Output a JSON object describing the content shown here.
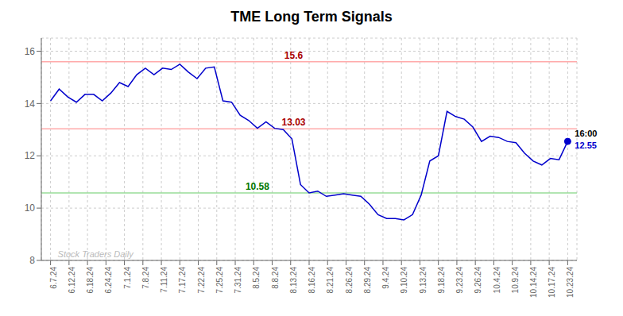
{
  "chart_data": {
    "type": "line",
    "title": "TME Long Term Signals",
    "x": [
      0,
      0.4667,
      0.9333,
      1.4,
      1.8667,
      2.3333,
      2.8,
      3.2667,
      3.7333,
      4.2,
      4.6667,
      5.1333,
      5.6,
      6.0667,
      6.5333,
      7,
      7.4667,
      7.9333,
      8.4,
      8.8667,
      9.3333,
      9.8,
      10.2667,
      10.7333,
      11.2,
      11.6667,
      12.1333,
      12.6,
      13.0667,
      13.5333,
      14,
      14.4667,
      14.9333,
      15.4,
      15.8667,
      16.3333,
      16.8,
      17.2667,
      17.7333,
      18.2,
      18.6667,
      19.1333,
      19.6,
      20.0667,
      20.5333,
      21,
      21.4667,
      21.9333,
      22.4,
      22.8667,
      23.3333,
      23.8,
      24.2667,
      24.7333,
      25.2,
      25.6667,
      26.1333,
      26.6,
      27.0667,
      27.5333,
      28
    ],
    "values": [
      14.1,
      14.55,
      14.25,
      14.05,
      14.35,
      14.35,
      14.1,
      14.4,
      14.8,
      14.65,
      15.1,
      15.35,
      15.1,
      15.35,
      15.3,
      15.5,
      15.2,
      14.95,
      15.35,
      15.4,
      14.1,
      14.05,
      13.55,
      13.35,
      13.05,
      13.3,
      13.05,
      13.0,
      12.65,
      10.9,
      10.58,
      10.65,
      10.45,
      10.5,
      10.55,
      10.5,
      10.45,
      10.15,
      9.75,
      9.6,
      9.6,
      9.55,
      9.75,
      10.5,
      11.8,
      12.0,
      13.7,
      13.5,
      13.4,
      13.1,
      12.55,
      12.75,
      12.7,
      12.55,
      12.5,
      12.1,
      11.8,
      11.65,
      11.9,
      11.85,
      12.55
    ],
    "color": "#0000cc",
    "xlim": [
      -0.5,
      28.5
    ],
    "xticks": [
      {
        "value": 0,
        "label": "6.7.24"
      },
      {
        "value": 1,
        "label": "6.12.24"
      },
      {
        "value": 2,
        "label": "6.18.24"
      },
      {
        "value": 3,
        "label": "6.24.24"
      },
      {
        "value": 4,
        "label": "7.1.24"
      },
      {
        "value": 5,
        "label": "7.8.24"
      },
      {
        "value": 6,
        "label": "7.11.24"
      },
      {
        "value": 7,
        "label": "7.17.24"
      },
      {
        "value": 8,
        "label": "7.22.24"
      },
      {
        "value": 9,
        "label": "7.25.24"
      },
      {
        "value": 10,
        "label": "7.31.24"
      },
      {
        "value": 11,
        "label": "8.5.24"
      },
      {
        "value": 12,
        "label": "8.8.24"
      },
      {
        "value": 13,
        "label": "8.13.24"
      },
      {
        "value": 14,
        "label": "8.16.24"
      },
      {
        "value": 15,
        "label": "8.21.24"
      },
      {
        "value": 16,
        "label": "8.26.24"
      },
      {
        "value": 17,
        "label": "8.29.24"
      },
      {
        "value": 18,
        "label": "9.4.24"
      },
      {
        "value": 19,
        "label": "9.10.24"
      },
      {
        "value": 20,
        "label": "9.13.24"
      },
      {
        "value": 21,
        "label": "9.18.24"
      },
      {
        "value": 22,
        "label": "9.23.24"
      },
      {
        "value": 23,
        "label": "9.26.24"
      },
      {
        "value": 24,
        "label": "10.4.24"
      },
      {
        "value": 25,
        "label": "10.9.24"
      },
      {
        "value": 26,
        "label": "10.14.24"
      },
      {
        "value": 27,
        "label": "10.17.24"
      },
      {
        "value": 28,
        "label": "10.23.24"
      }
    ],
    "ylim": [
      8,
      16.5
    ],
    "yticks": [
      8,
      10,
      12,
      14,
      16
    ],
    "grid": true,
    "hlines": [
      {
        "value": 15.6,
        "color": "#ffaaaa"
      },
      {
        "value": 13.03,
        "color": "#ffaaaa"
      },
      {
        "value": 10.58,
        "color": "#99dd99"
      }
    ],
    "annotations": [
      {
        "text": "15.6",
        "x": 13.16,
        "y": 15.6,
        "color": "#aa0000"
      },
      {
        "text": "13.03",
        "x": 13.16,
        "y": 13.03,
        "color": "#aa0000"
      },
      {
        "text": "10.58",
        "x": 11.2,
        "y": 10.58,
        "color": "#007700"
      },
      {
        "text": "16:00",
        "x": 28.3,
        "y": 12.85,
        "color": "#000000"
      },
      {
        "text": "12.55",
        "x": 28.3,
        "y": 12.4,
        "color": "#0000cc"
      },
      {
        "text": "Stock Traders Daily",
        "x": 0.3,
        "y": 8.25,
        "color": "#bbbbbb"
      }
    ]
  }
}
